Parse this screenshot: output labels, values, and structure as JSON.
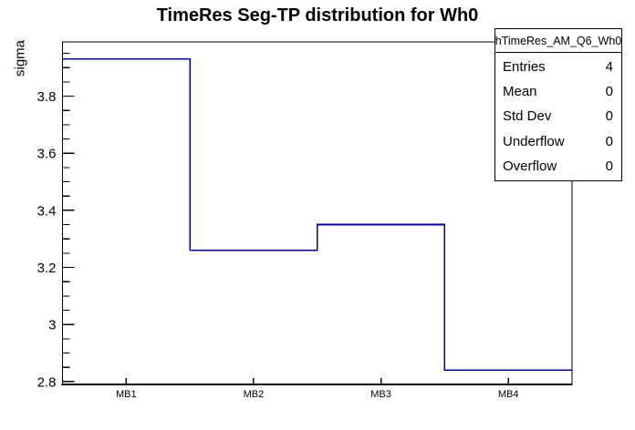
{
  "title": "TimeRes Seg-TP distribution for Wh0",
  "colors": {
    "histogram_line": "#000099",
    "frame": "#000000",
    "text": "#000000",
    "background": "#ffffff"
  },
  "stats_box": {
    "header": "hTimeRes_AM_Q6_Wh0",
    "rows": [
      {
        "label": "Entries",
        "value": "4"
      },
      {
        "label": "Mean",
        "value": "0"
      },
      {
        "label": "Std Dev",
        "value": "0"
      },
      {
        "label": "Underflow",
        "value": "0"
      },
      {
        "label": "Overflow",
        "value": "0"
      }
    ]
  },
  "chart_data": {
    "type": "bar",
    "subtype": "step-histogram-outline",
    "title": "TimeRes Seg-TP distribution for Wh0",
    "categories": [
      "MB1",
      "MB2",
      "MB3",
      "MB4"
    ],
    "values": [
      3.93,
      3.26,
      3.35,
      2.84
    ],
    "xlabel": "",
    "ylabel": "sigma",
    "ylim": [
      2.79,
      3.99
    ],
    "y_tick_values": [
      2.8,
      3.0,
      3.2,
      3.4,
      3.6,
      3.8
    ],
    "y_tick_labels": [
      "2.8",
      "3",
      "3.2",
      "3.4",
      "3.6",
      "3.8"
    ],
    "y_minor_tick_step": 0.05,
    "grid": false,
    "legend_position": "none",
    "line_color": "#000099"
  }
}
